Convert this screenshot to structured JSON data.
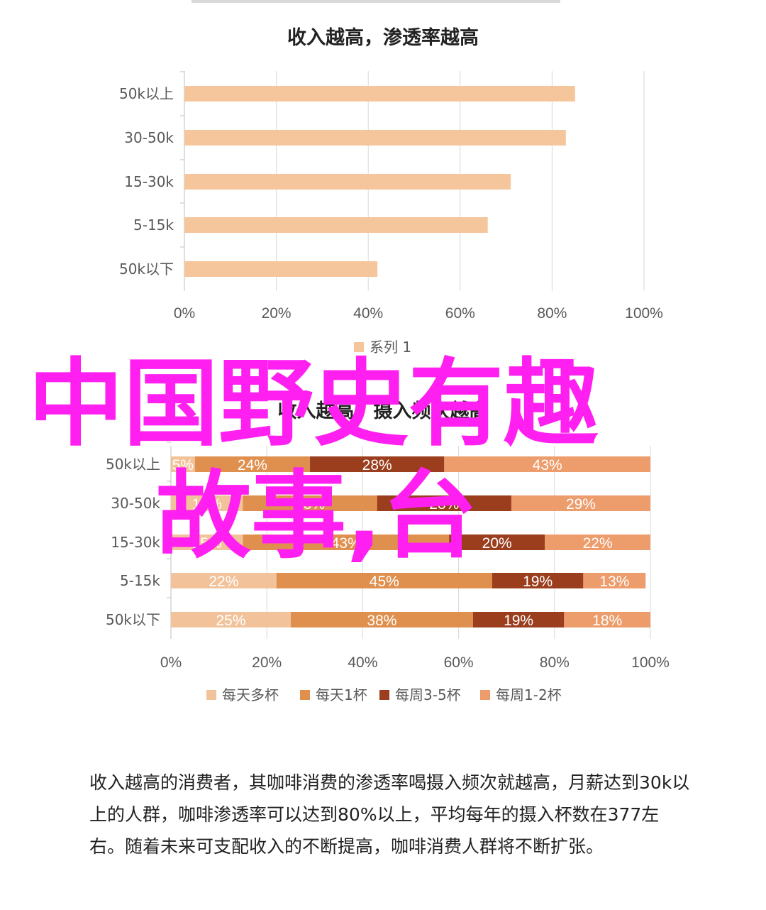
{
  "chart_data": [
    {
      "type": "bar",
      "orientation": "horizontal",
      "title": "收入越高，渗透率越高",
      "categories": [
        "50k以上",
        "30-50k",
        "15-30k",
        "5-15k",
        "50k以下"
      ],
      "series": [
        {
          "name": "系列 1",
          "values": [
            85,
            83,
            71,
            66,
            42
          ],
          "color": "#f5c59c"
        }
      ],
      "xlim": [
        0,
        100
      ],
      "xticks": [
        "0%",
        "20%",
        "40%",
        "60%",
        "80%",
        "100%"
      ],
      "grid": true,
      "legend": "bottom"
    },
    {
      "type": "bar",
      "orientation": "horizontal",
      "stacked": true,
      "title": "收入越高，摄入频次越高",
      "categories": [
        "50k以上",
        "30-50k",
        "15-30k",
        "5-15k",
        "50k以下"
      ],
      "series": [
        {
          "name": "每天多杯",
          "values": [
            5,
            15,
            15,
            22,
            25
          ],
          "labels": [
            "5%",
            "15%",
            "15%",
            "22%",
            "25%"
          ],
          "color": "#f2c39b"
        },
        {
          "name": "每天1杯",
          "values": [
            24,
            28,
            43,
            45,
            38
          ],
          "labels": [
            "24%",
            "28%",
            "43%",
            "45%",
            "38%"
          ],
          "color": "#e0904e"
        },
        {
          "name": "每周3-5杯",
          "values": [
            28,
            28,
            20,
            19,
            19
          ],
          "labels": [
            "28%",
            "28%",
            "20%",
            "19%",
            "19%"
          ],
          "color": "#9a3e1e"
        },
        {
          "name": "每周1-2杯",
          "values": [
            43,
            29,
            22,
            13,
            18
          ],
          "labels": [
            "43%",
            "29%",
            "22%",
            "13%",
            "18%"
          ],
          "color": "#ed9c6c"
        }
      ],
      "xlim": [
        0,
        100
      ],
      "xticks": [
        "0%",
        "20%",
        "40%",
        "60%",
        "80%",
        "100%"
      ],
      "grid": true,
      "legend": "bottom"
    }
  ],
  "overlay": {
    "line1": "中国野史有趣",
    "line2": "故事,台",
    "color": "#ff1ff0"
  },
  "caption": {
    "text": "收入越高的消费者，其咖啡消费的渗透率喝摄入频次就越高，月薪达到30k以上的人群，咖啡渗透率可以达到80%以上，平均每年的摄入杯数在377左右。随着未来可支配收入的不断提高，咖啡消费人群将不断扩张。"
  }
}
